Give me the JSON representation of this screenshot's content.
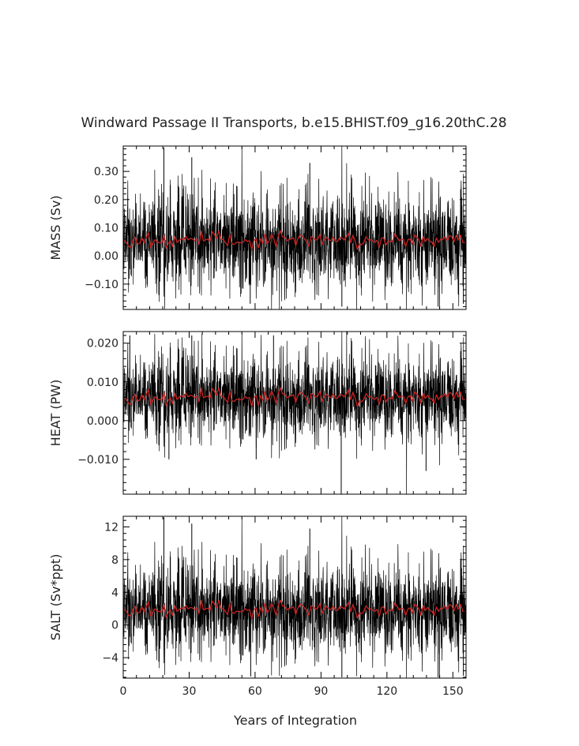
{
  "figure": {
    "title": "Windward Passage II Transports, b.e15.BHIST.f09_g16.20thC.28",
    "xlabel": "Years of Integration"
  },
  "colors": {
    "raw_series": "#000000",
    "smoothed_series": "#cc2222",
    "axes": "#000000"
  },
  "chart_data": [
    {
      "type": "line",
      "panel": "mass",
      "ylabel": "MASS (Sv)",
      "xlim": [
        0,
        156
      ],
      "ylim": [
        -0.19,
        0.39
      ],
      "xticks": [
        0,
        30,
        60,
        90,
        120,
        150
      ],
      "yticks": [
        -0.1,
        0.0,
        0.1,
        0.2,
        0.3
      ],
      "ytick_labels": [
        "−0.10",
        "0.00",
        "0.10",
        "0.20",
        "0.30"
      ],
      "raw_mean": 0.055,
      "raw_spread": 0.085,
      "smoothed_mean": 0.055,
      "smoothed_spread": 0.015,
      "spikes": [
        [
          18.5,
          0.385
        ],
        [
          31.2,
          0.35
        ],
        [
          84.9,
          0.33
        ],
        [
          99.5,
          -0.18
        ],
        [
          143.3,
          -0.18
        ],
        [
          154.8,
          -0.17
        ],
        [
          57.8,
          -0.17
        ]
      ],
      "series": [
        {
          "name": "",
          "role": "raw monthly transport"
        },
        {
          "name": "",
          "role": "smoothed annual transport"
        }
      ]
    },
    {
      "type": "line",
      "panel": "heat",
      "ylabel": "HEAT (PW)",
      "xlim": [
        0,
        156
      ],
      "ylim": [
        -0.019,
        0.023
      ],
      "xticks": [
        0,
        30,
        60,
        90,
        120,
        150
      ],
      "yticks": [
        -0.01,
        0.0,
        0.01,
        0.02
      ],
      "ytick_labels": [
        "−0.010",
        "0.000",
        "0.010",
        "0.020"
      ],
      "raw_mean": 0.0062,
      "raw_spread": 0.0055,
      "smoothed_mean": 0.006,
      "smoothed_spread": 0.0011,
      "spikes": [
        [
          99.2,
          -0.019
        ],
        [
          20.8,
          -0.01
        ],
        [
          68.4,
          0.022
        ],
        [
          60.5,
          -0.01
        ],
        [
          137.8,
          -0.013
        ],
        [
          31.2,
          0.022
        ],
        [
          3.0,
          0.022
        ]
      ],
      "series": [
        {
          "name": "",
          "role": "raw monthly transport"
        },
        {
          "name": "",
          "role": "smoothed annual transport"
        }
      ]
    },
    {
      "type": "line",
      "panel": "salt",
      "ylabel": "SALT (Sv*ppt)",
      "xlim": [
        0,
        156
      ],
      "ylim": [
        -6.5,
        13.3
      ],
      "xticks": [
        0,
        30,
        60,
        90,
        120,
        150
      ],
      "xtick_labels": [
        "0",
        "30",
        "60",
        "90",
        "120",
        "150"
      ],
      "yticks": [
        -4,
        0,
        4,
        8,
        12
      ],
      "ytick_labels": [
        "−4",
        "0",
        "4",
        "8",
        "12"
      ],
      "raw_mean": 1.9,
      "raw_spread": 2.8,
      "smoothed_mean": 1.9,
      "smoothed_spread": 0.5,
      "spikes": [
        [
          18.5,
          13.2
        ],
        [
          31.2,
          12.4
        ],
        [
          84.9,
          11.8
        ],
        [
          99.5,
          -6.4
        ],
        [
          143.3,
          -6.4
        ],
        [
          154.8,
          -6.2
        ],
        [
          58.0,
          -6.3
        ]
      ],
      "series": [
        {
          "name": "",
          "role": "raw monthly transport"
        },
        {
          "name": "",
          "role": "smoothed annual transport"
        }
      ]
    }
  ]
}
